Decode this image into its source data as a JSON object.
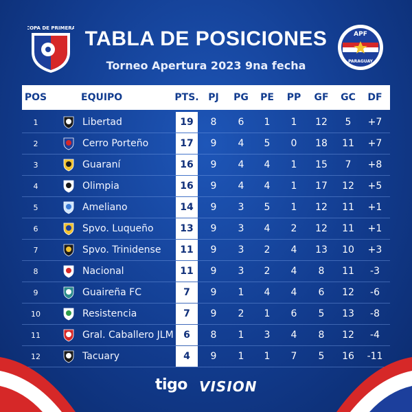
{
  "brand": {
    "left_logo_text": "COPA DE PRIMERA",
    "right_logo_text_top": "APF",
    "right_logo_text_bottom": "PARAGUAY"
  },
  "title": "TABLA DE POSICIONES",
  "subtitle": "Torneo Apertura 2023 9na fecha",
  "headers": {
    "pos": "POS",
    "equipo": "EQUIPO",
    "pts": "PTS.",
    "pj": "PJ",
    "pg": "PG",
    "pe": "PE",
    "pp": "PP",
    "gf": "GF",
    "gc": "GC",
    "df": "DF"
  },
  "rows": [
    {
      "pos": "1",
      "team": "Libertad",
      "pts": "19",
      "pj": "8",
      "pg": "6",
      "pe": "1",
      "pp": "1",
      "gf": "12",
      "gc": "5",
      "df": "+7",
      "crest": "libertad-crest-icon"
    },
    {
      "pos": "2",
      "team": "Cerro Porteño",
      "pts": "17",
      "pj": "9",
      "pg": "4",
      "pe": "5",
      "pp": "0",
      "gf": "18",
      "gc": "11",
      "df": "+7",
      "crest": "cerro-porteno-crest-icon"
    },
    {
      "pos": "3",
      "team": "Guaraní",
      "pts": "16",
      "pj": "9",
      "pg": "4",
      "pe": "4",
      "pp": "1",
      "gf": "15",
      "gc": "7",
      "df": "+8",
      "crest": "guarani-crest-icon"
    },
    {
      "pos": "4",
      "team": "Olimpia",
      "pts": "16",
      "pj": "9",
      "pg": "4",
      "pe": "4",
      "pp": "1",
      "gf": "17",
      "gc": "12",
      "df": "+5",
      "crest": "olimpia-crest-icon"
    },
    {
      "pos": "5",
      "team": "Ameliano",
      "pts": "14",
      "pj": "9",
      "pg": "3",
      "pe": "5",
      "pp": "1",
      "gf": "12",
      "gc": "11",
      "df": "+1",
      "crest": "ameliano-crest-icon"
    },
    {
      "pos": "6",
      "team": "Spvo. Luqueño",
      "pts": "13",
      "pj": "9",
      "pg": "3",
      "pe": "4",
      "pp": "2",
      "gf": "12",
      "gc": "11",
      "df": "+1",
      "crest": "luqueno-crest-icon"
    },
    {
      "pos": "7",
      "team": "Spvo. Trinidense",
      "pts": "11",
      "pj": "9",
      "pg": "3",
      "pe": "2",
      "pp": "4",
      "gf": "13",
      "gc": "10",
      "df": "+3",
      "crest": "trinidense-crest-icon"
    },
    {
      "pos": "8",
      "team": "Nacional",
      "pts": "11",
      "pj": "9",
      "pg": "3",
      "pe": "2",
      "pp": "4",
      "gf": "8",
      "gc": "11",
      "df": "-3",
      "crest": "nacional-crest-icon"
    },
    {
      "pos": "9",
      "team": "Guaireña FC",
      "pts": "7",
      "pj": "9",
      "pg": "1",
      "pe": "4",
      "pp": "4",
      "gf": "6",
      "gc": "12",
      "df": "-6",
      "crest": "guairena-crest-icon"
    },
    {
      "pos": "10",
      "team": "Resistencia",
      "pts": "7",
      "pj": "9",
      "pg": "2",
      "pe": "1",
      "pp": "6",
      "gf": "5",
      "gc": "13",
      "df": "-8",
      "crest": "resistencia-crest-icon"
    },
    {
      "pos": "11",
      "team": "Gral. Caballero JLM",
      "pts": "6",
      "pj": "8",
      "pg": "1",
      "pe": "3",
      "pp": "4",
      "gf": "8",
      "gc": "12",
      "df": "-4",
      "crest": "caballero-crest-icon"
    },
    {
      "pos": "12",
      "team": "Tacuary",
      "pts": "4",
      "pj": "9",
      "pg": "1",
      "pe": "1",
      "pp": "7",
      "gf": "5",
      "gc": "16",
      "df": "-11",
      "crest": "tacuary-crest-icon"
    }
  ],
  "crest_colors": [
    [
      "#1a1a1a",
      "#ffffff"
    ],
    [
      "#1c3f9c",
      "#d62828"
    ],
    [
      "#f2c230",
      "#1a1a1a"
    ],
    [
      "#ffffff",
      "#1a1a1a"
    ],
    [
      "#cfe6ff",
      "#3a7bd5"
    ],
    [
      "#f2c230",
      "#1c3f9c"
    ],
    [
      "#1a1a1a",
      "#f2c230"
    ],
    [
      "#ffffff",
      "#d62828"
    ],
    [
      "#2c8c8c",
      "#ffffff"
    ],
    [
      "#ffffff",
      "#2e9e4a"
    ],
    [
      "#d62828",
      "#ffffff"
    ],
    [
      "#1a1a1a",
      "#ffffff"
    ]
  ],
  "sponsors": {
    "tigo": "tigo",
    "vision": "VISION"
  },
  "colors": {
    "accent_red": "#d62828",
    "accent_blue": "#123c8f",
    "white": "#ffffff"
  }
}
